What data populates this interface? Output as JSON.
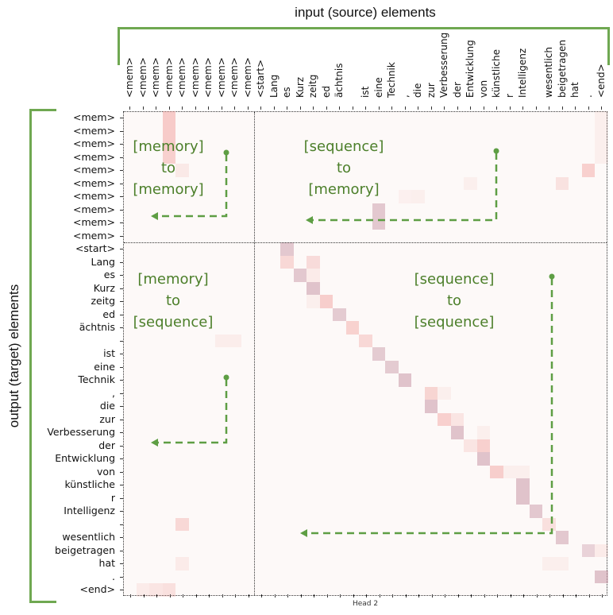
{
  "title": "input (source) elements",
  "ylabel": "output (target) elements",
  "head_label": "Head 2",
  "colors": {
    "accent": "#6fa851",
    "annotation_text": "#4c7f2a",
    "arrow": "#5e9e44"
  },
  "annotations": [
    {
      "lines": [
        "[memory]",
        "to",
        "[memory]"
      ]
    },
    {
      "lines": [
        "[sequence]",
        "to",
        "[memory]"
      ]
    },
    {
      "lines": [
        "[memory]",
        "to",
        "[sequence]"
      ]
    },
    {
      "lines": [
        "[sequence]",
        "to",
        "[sequence]"
      ]
    }
  ],
  "chart_data": {
    "type": "heatmap",
    "title": "Head 2",
    "xlabel": "input (source) elements",
    "ylabel": "output (target) elements",
    "x_tokens": [
      "<mem>",
      "<mem>",
      "<mem>",
      "<mem>",
      "<mem>",
      "<mem>",
      "<mem>",
      "<mem>",
      "<mem>",
      "<mem>",
      "<start>",
      "Lang",
      "es",
      "Kurz",
      "zeitg",
      "ed",
      "ächtnis",
      "",
      "ist",
      "eine",
      "Technik",
      ",",
      "die",
      "zur",
      "Verbesserung",
      "der",
      "Entwicklung",
      "von",
      "künstliche",
      "r",
      "Intelligenz",
      "",
      "wesentlich",
      "beigetragen",
      "hat",
      ".",
      "<end>"
    ],
    "y_tokens": [
      "<mem>",
      "<mem>",
      "<mem>",
      "<mem>",
      "<mem>",
      "<mem>",
      "<mem>",
      "<mem>",
      "<mem>",
      "<mem>",
      "<start>",
      "Lang",
      "es",
      "Kurz",
      "zeitg",
      "ed",
      "ächtnis",
      "",
      "ist",
      "eine",
      "Technik",
      ",",
      "die",
      "zur",
      "Verbesserung",
      "der",
      "Entwicklung",
      "von",
      "künstliche",
      "r",
      "Intelligenz",
      "",
      "wesentlich",
      "beigetragen",
      "hat",
      ".",
      "<end>"
    ],
    "value_range": [
      0,
      1
    ],
    "cells": [
      [
        0,
        3,
        0.28
      ],
      [
        1,
        3,
        0.28
      ],
      [
        2,
        3,
        0.28
      ],
      [
        3,
        3,
        0.25
      ],
      [
        4,
        4,
        0.1
      ],
      [
        0,
        36,
        0.06
      ],
      [
        1,
        36,
        0.06
      ],
      [
        2,
        36,
        0.06
      ],
      [
        3,
        36,
        0.06
      ],
      [
        4,
        35,
        0.25
      ],
      [
        5,
        33,
        0.14
      ],
      [
        5,
        26,
        0.06
      ],
      [
        6,
        21,
        0.05
      ],
      [
        6,
        22,
        0.06
      ],
      [
        7,
        19,
        0.38
      ],
      [
        8,
        19,
        0.38
      ],
      [
        10,
        12,
        0.38
      ],
      [
        11,
        12,
        0.2
      ],
      [
        11,
        14,
        0.18
      ],
      [
        12,
        13,
        0.38
      ],
      [
        12,
        14,
        0.08
      ],
      [
        13,
        14,
        0.42
      ],
      [
        14,
        14,
        0.06
      ],
      [
        14,
        15,
        0.26
      ],
      [
        15,
        16,
        0.36
      ],
      [
        16,
        17,
        0.24
      ],
      [
        17,
        18,
        0.2
      ],
      [
        17,
        7,
        0.07
      ],
      [
        17,
        8,
        0.07
      ],
      [
        18,
        19,
        0.36
      ],
      [
        19,
        20,
        0.36
      ],
      [
        20,
        21,
        0.42
      ],
      [
        21,
        23,
        0.22
      ],
      [
        21,
        24,
        0.06
      ],
      [
        22,
        23,
        0.42
      ],
      [
        23,
        24,
        0.25
      ],
      [
        23,
        25,
        0.12
      ],
      [
        24,
        25,
        0.42
      ],
      [
        24,
        27,
        0.06
      ],
      [
        25,
        26,
        0.12
      ],
      [
        25,
        27,
        0.25
      ],
      [
        26,
        27,
        0.42
      ],
      [
        27,
        28,
        0.26
      ],
      [
        27,
        29,
        0.06
      ],
      [
        27,
        30,
        0.06
      ],
      [
        28,
        30,
        0.42
      ],
      [
        29,
        30,
        0.42
      ],
      [
        30,
        31,
        0.38
      ],
      [
        31,
        32,
        0.15
      ],
      [
        31,
        4,
        0.2
      ],
      [
        32,
        33,
        0.38
      ],
      [
        33,
        35,
        0.3
      ],
      [
        33,
        36,
        0.08
      ],
      [
        34,
        32,
        0.06
      ],
      [
        34,
        33,
        0.06
      ],
      [
        34,
        4,
        0.08
      ],
      [
        35,
        36,
        0.42
      ],
      [
        36,
        1,
        0.08
      ],
      [
        36,
        2,
        0.12
      ],
      [
        36,
        3,
        0.15
      ]
    ]
  }
}
